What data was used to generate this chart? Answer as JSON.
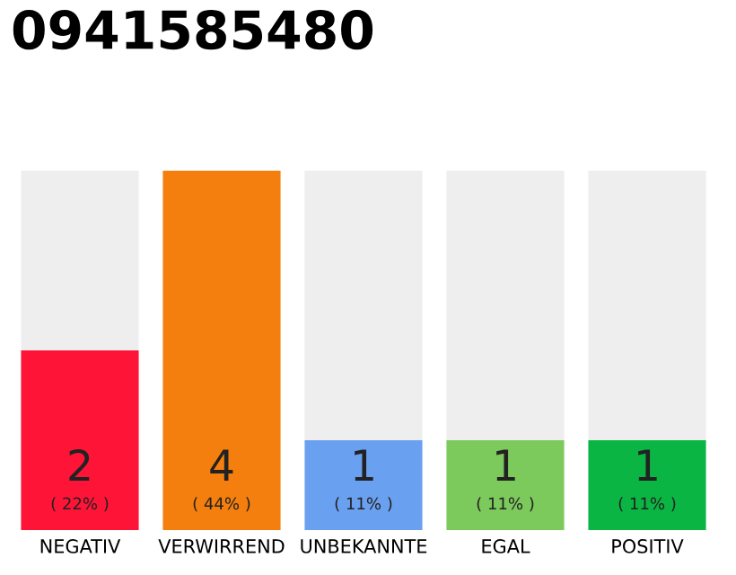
{
  "chart_data": {
    "type": "bar",
    "title": "0941585480",
    "stacked": true,
    "categories": [
      "NEGATIV",
      "VERWIRREND",
      "UNBEKANNTE",
      "EGAL",
      "POSITIV"
    ],
    "series": [
      {
        "colors": [
          "#fe1437",
          "#f47f0e",
          "#6aa0f0",
          "#7cc95c",
          "#0ab543"
        ],
        "values": [
          2,
          4,
          1,
          1,
          1
        ],
        "value_labels": [
          "2\n( 22% )",
          "4\n( 44% )",
          "1\n( 11% )",
          "1\n( 11% )",
          "1\n( 11% )"
        ]
      },
      {
        "color": "#eeeeee",
        "values": [
          2,
          null,
          3,
          3,
          3
        ]
      }
    ],
    "ylim": [
      0,
      4
    ],
    "tick_labels": "x",
    "grid": false,
    "legend": false
  }
}
